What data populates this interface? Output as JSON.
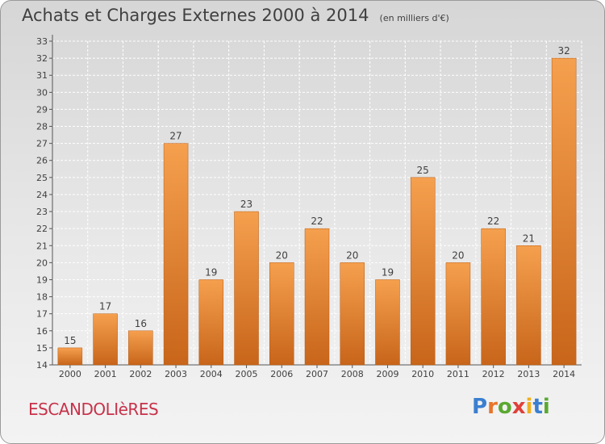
{
  "header": {
    "title": "Achats et Charges Externes 2000 à 2014",
    "subtitle": "(en milliers d'€)"
  },
  "footer": {
    "town": "ESCANDOLIèRES",
    "logo_text": "Proxiti"
  },
  "colors": {
    "bar_light": "#f5a04e",
    "bar_dark": "#c8651a",
    "title": "#404040",
    "town": "#c8324a"
  },
  "chart_data": {
    "type": "bar",
    "title": "Achats et Charges Externes 2000 à 2014",
    "subtitle": "(en milliers d'€)",
    "xlabel": "",
    "ylabel": "",
    "categories": [
      "2000",
      "2001",
      "2002",
      "2003",
      "2004",
      "2005",
      "2006",
      "2007",
      "2008",
      "2009",
      "2010",
      "2011",
      "2012",
      "2013",
      "2014"
    ],
    "values": [
      15,
      17,
      16,
      27,
      19,
      23,
      20,
      22,
      20,
      19,
      25,
      20,
      22,
      21,
      32
    ],
    "ylim": [
      14,
      33
    ],
    "yticks": [
      14,
      15,
      16,
      17,
      18,
      19,
      20,
      21,
      22,
      23,
      24,
      25,
      26,
      27,
      28,
      29,
      30,
      31,
      32,
      33
    ],
    "grid": true,
    "data_labels": true
  }
}
